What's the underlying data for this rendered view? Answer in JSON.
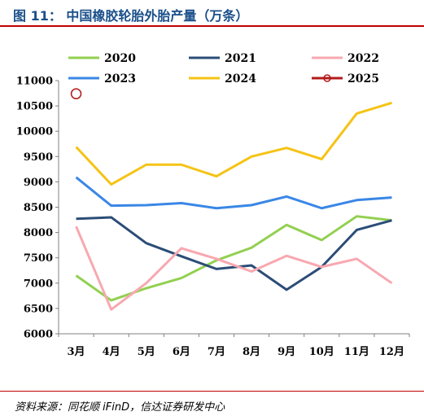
{
  "figure": {
    "title": "图 11： 中国橡胶轮胎外胎产量（万条）",
    "source": "资料来源：同花顺 iFinD，信达证券研发中心"
  },
  "chart_data": {
    "type": "line",
    "title": "中国橡胶轮胎外胎产量（万条）",
    "xlabel": "",
    "ylabel": "",
    "categories": [
      "3月",
      "4月",
      "5月",
      "6月",
      "7月",
      "8月",
      "9月",
      "10月",
      "11月",
      "12月"
    ],
    "ylim": [
      6000,
      11000
    ],
    "yticks": [
      6000,
      6500,
      7000,
      7500,
      8000,
      8500,
      9000,
      9500,
      10000,
      10500,
      11000
    ],
    "grid": false,
    "legend_position": "top",
    "series": [
      {
        "name": "2020",
        "color": "#92d050",
        "marker": false,
        "values": [
          7150,
          6660,
          6900,
          7100,
          7450,
          7700,
          8150,
          7850,
          8320,
          8240
        ]
      },
      {
        "name": "2021",
        "color": "#2b4d77",
        "marker": false,
        "values": [
          8270,
          8300,
          7790,
          7530,
          7280,
          7350,
          6870,
          7320,
          8050,
          8240
        ]
      },
      {
        "name": "2022",
        "color": "#f8a8b0",
        "marker": false,
        "values": [
          8120,
          6480,
          7000,
          7690,
          7480,
          7230,
          7540,
          7320,
          7480,
          7000
        ]
      },
      {
        "name": "2023",
        "color": "#3a87e6",
        "marker": false,
        "values": [
          9090,
          8530,
          8540,
          8580,
          8480,
          8540,
          8710,
          8480,
          8640,
          8690
        ]
      },
      {
        "name": "2024",
        "color": "#f5c315",
        "marker": false,
        "values": [
          9690,
          8950,
          9340,
          9340,
          9110,
          9500,
          9670,
          9450,
          10350,
          10560
        ]
      },
      {
        "name": "2025",
        "color": "#b31b1b",
        "marker": true,
        "values": [
          10740,
          null,
          null,
          null,
          null,
          null,
          null,
          null,
          null,
          null
        ]
      }
    ]
  }
}
